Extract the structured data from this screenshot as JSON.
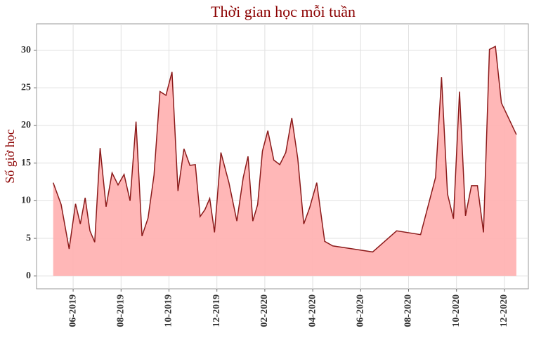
{
  "chart_data": {
    "type": "area",
    "title": "Thời gian học mỗi tuần",
    "y_label": "Số giờ học",
    "x": [
      "05-2019",
      "05-2019",
      "05-2019",
      "06-2019",
      "06-2019",
      "06-2019",
      "06-2019",
      "06-2019",
      "07-2019",
      "07-2019",
      "07-2019",
      "07-2019",
      "08-2019",
      "08-2019",
      "08-2019",
      "08-2019",
      "09-2019",
      "09-2019",
      "09-2019",
      "09-2019",
      "10-2019",
      "10-2019",
      "10-2019",
      "10-2019",
      "11-2019",
      "11-2019",
      "11-2019",
      "11-2019",
      "11-2019",
      "12-2019",
      "12-2019",
      "12-2019",
      "01-2020",
      "01-2020",
      "01-2020",
      "01-2020",
      "01-2020",
      "02-2020",
      "02-2020",
      "02-2020",
      "02-2020",
      "03-2020",
      "03-2020",
      "03-2020",
      "03-2020",
      "04-2020",
      "04-2020",
      "04-2020",
      "06-2020",
      "07-2020",
      "08-2020",
      "09-2020",
      "09-2020",
      "09-2020",
      "09-2020",
      "10-2020",
      "10-2020",
      "10-2020",
      "10-2020",
      "11-2020",
      "11-2020",
      "11-2020",
      "11-2020",
      "12-2020"
    ],
    "series": [
      {
        "name": "Số giờ học",
        "color": "#8b1a1a",
        "fill": "#ffb3b3",
        "values": [
          12.4,
          9.5,
          3.6,
          9.6,
          6.9,
          10.4,
          6.0,
          4.5,
          17.0,
          9.2,
          13.7,
          12.1,
          13.5,
          10.0,
          20.5,
          5.3,
          7.7,
          13.4,
          24.5,
          24.0,
          27.1,
          11.3,
          16.9,
          14.7,
          14.8,
          7.9,
          8.8,
          10.3,
          5.8,
          16.4,
          12.4,
          7.3,
          13.1,
          15.9,
          7.3,
          9.5,
          16.6,
          19.3,
          15.4,
          14.8,
          16.4,
          21.0,
          15.6,
          6.9,
          9.1,
          12.4,
          4.6,
          4.0,
          3.2,
          6.0,
          5.5,
          13.1,
          26.4,
          10.9,
          7.6,
          24.5,
          8.0,
          12.0,
          12.0,
          5.8,
          30.1,
          30.5,
          23.0,
          18.8
        ]
      }
    ],
    "ylim": [
      -1.7,
      33.5
    ],
    "yticks": [
      0,
      5,
      10,
      15,
      20,
      25,
      30
    ],
    "xticks": [
      "06-2019",
      "08-2019",
      "10-2019",
      "12-2019",
      "02-2020",
      "04-2020",
      "06-2020",
      "08-2020",
      "10-2020",
      "12-2020"
    ],
    "grid": true
  }
}
